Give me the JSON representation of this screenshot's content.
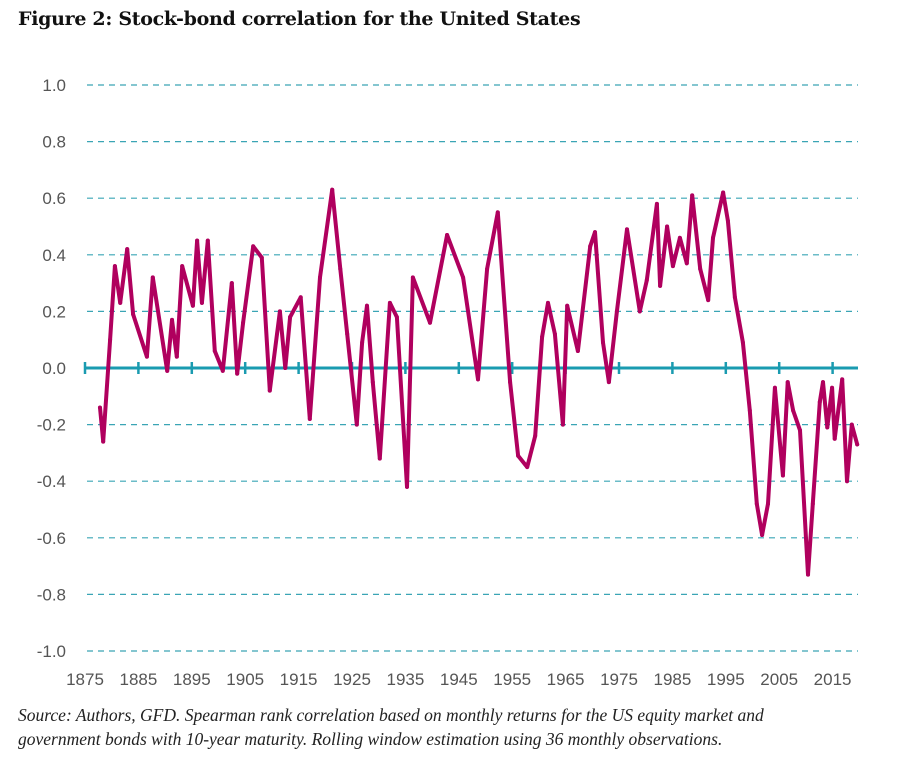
{
  "title": "Figure 2: Stock-bond correlation for the United States",
  "caption": {
    "line1": "Source: Authors, GFD. Spearman rank correlation based on monthly returns for the US equity market and",
    "line2": "government bonds with 10-year maturity. Rolling window estimation using 36 monthly observations."
  },
  "colors": {
    "series": "#b0005e",
    "zero_line": "#1a9bb0",
    "grid": "#3aa5b5"
  },
  "chart_data": {
    "type": "line",
    "title": "Figure 2: Stock-bond correlation for the United States",
    "xlabel": "",
    "ylabel": "",
    "xlim": [
      1875,
      2020
    ],
    "ylim": [
      -1.0,
      1.0
    ],
    "grid": "horizontal dashed",
    "x_ticks": [
      "1875",
      "1885",
      "1895",
      "1905",
      "1915",
      "1925",
      "1935",
      "1945",
      "1955",
      "1965",
      "1975",
      "1985",
      "1995",
      "2005",
      "2015"
    ],
    "y_ticks": [
      "1.0",
      "0.8",
      "0.6",
      "0.4",
      "0.2",
      "0.0",
      "-0.2",
      "-0.4",
      "-0.6",
      "-0.8",
      "-1.0"
    ],
    "series": [
      {
        "x": [
          1877.8,
          1878.4,
          1879.7,
          1880.6,
          1881.6,
          1882.9,
          1884.0,
          1886.6,
          1887.7,
          1890.4,
          1891.3,
          1892.2,
          1893.2,
          1895.2,
          1896.0,
          1896.9,
          1898.0,
          1899.3,
          1900.8,
          1902.5,
          1903.5,
          1904.6,
          1906.5,
          1908.1,
          1909.6,
          1911.5,
          1912.5,
          1913.4,
          1915.4,
          1917.1,
          1919.0,
          1921.3,
          1922.8,
          1924.1,
          1925.9,
          1926.9,
          1927.8,
          1928.9,
          1930.2,
          1932.1,
          1933.4,
          1935.3,
          1936.4,
          1939.6,
          1942.8,
          1945.8,
          1948.6,
          1950.3,
          1952.3,
          1954.6,
          1956.1,
          1957.8,
          1959.3,
          1960.6,
          1961.7,
          1963.0,
          1964.5,
          1965.3,
          1967.3,
          1969.6,
          1970.5,
          1972.0,
          1973.1,
          1974.6,
          1976.5,
          1978.9,
          1980.2,
          1982.1,
          1982.7,
          1984.0,
          1985.1,
          1986.4,
          1987.7,
          1988.7,
          1990.2,
          1991.7,
          1992.6,
          1994.5,
          1995.4,
          1996.7,
          1998.2,
          1999.5,
          2000.8,
          2001.8,
          2002.9,
          2004.2,
          2005.7,
          2006.6,
          2007.6,
          2008.9,
          2010.4,
          2011.3,
          2012.6,
          2013.2,
          2014.0,
          2014.9,
          2015.4,
          2016.8,
          2017.7,
          2018.6,
          2019.6
        ],
        "y": [
          -0.14,
          -0.26,
          0.1,
          0.36,
          0.23,
          0.42,
          0.19,
          0.04,
          0.32,
          -0.01,
          0.17,
          0.04,
          0.36,
          0.22,
          0.45,
          0.23,
          0.45,
          0.06,
          -0.01,
          0.3,
          -0.02,
          0.16,
          0.43,
          0.39,
          -0.08,
          0.2,
          0.0,
          0.18,
          0.25,
          -0.18,
          0.32,
          0.63,
          0.35,
          0.12,
          -0.2,
          0.09,
          0.22,
          -0.05,
          -0.32,
          0.23,
          0.18,
          -0.42,
          0.32,
          0.16,
          0.47,
          0.32,
          -0.04,
          0.35,
          0.55,
          -0.05,
          -0.31,
          -0.35,
          -0.24,
          0.11,
          0.23,
          0.12,
          -0.2,
          0.22,
          0.06,
          0.43,
          0.48,
          0.09,
          -0.05,
          0.2,
          0.49,
          0.2,
          0.31,
          0.58,
          0.29,
          0.5,
          0.36,
          0.46,
          0.37,
          0.61,
          0.35,
          0.24,
          0.46,
          0.62,
          0.52,
          0.25,
          0.09,
          -0.15,
          -0.48,
          -0.59,
          -0.48,
          -0.07,
          -0.38,
          -0.05,
          -0.15,
          -0.22,
          -0.73,
          -0.48,
          -0.12,
          -0.05,
          -0.21,
          -0.07,
          -0.25,
          -0.04,
          -0.4,
          -0.2,
          -0.27
        ]
      }
    ]
  }
}
